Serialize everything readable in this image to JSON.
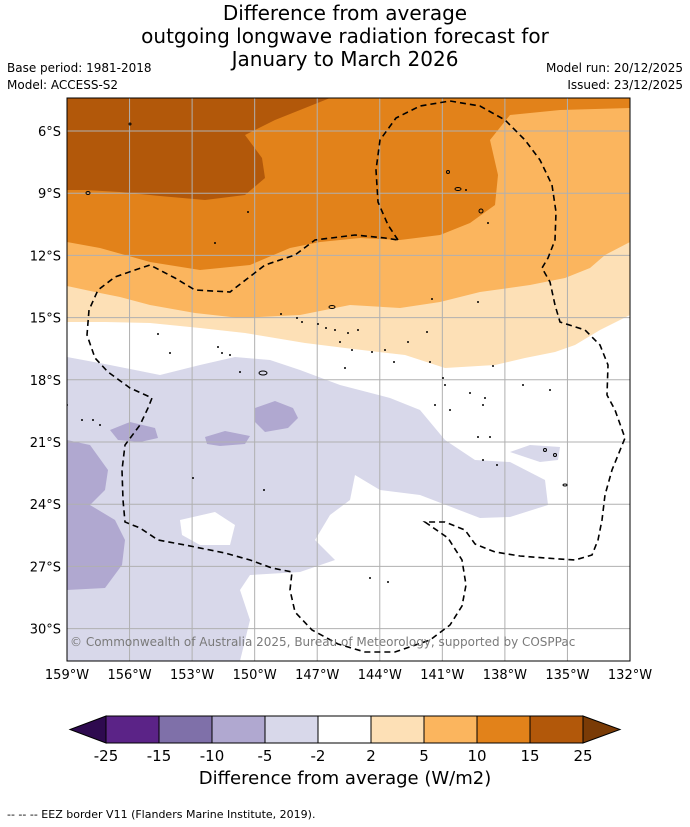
{
  "title_lines": [
    "Difference from average",
    "outgoing longwave radiation forecast for",
    "January to March 2026"
  ],
  "meta_left": {
    "base_period": "Base period: 1981-2018",
    "model": "Model: ACCESS-S2"
  },
  "meta_right": {
    "model_run": "Model run: 20/12/2025",
    "issued": "Issued: 23/12/2025"
  },
  "map": {
    "lon_ticks": [
      "159°W",
      "156°W",
      "153°W",
      "150°W",
      "147°W",
      "144°W",
      "141°W",
      "138°W",
      "135°W",
      "132°W"
    ],
    "lat_ticks": [
      "6°S",
      "9°S",
      "12°S",
      "15°S",
      "18°S",
      "21°S",
      "24°S",
      "27°S",
      "30°S"
    ],
    "copyright": "© Commonwealth of Australia 2025, Bureau of Meteorology, supported by COSPPac"
  },
  "colorbar": {
    "labels": [
      "-25",
      "-15",
      "-10",
      "-5",
      "-2",
      "2",
      "5",
      "10",
      "15",
      "25"
    ],
    "colors": [
      "#5b2387",
      "#7f70a9",
      "#b0a8d0",
      "#d8d8ea",
      "#ffffff",
      "#fde0b6",
      "#fbb55e",
      "#e2821a",
      "#b2580a"
    ],
    "under_color": "#2e0a4f",
    "over_color": "#7a3b06",
    "title": "Difference from average (W/m2)"
  },
  "footer": "--  --  -- EEZ border V11 (Flanders Marine Institute, 2019)."
}
